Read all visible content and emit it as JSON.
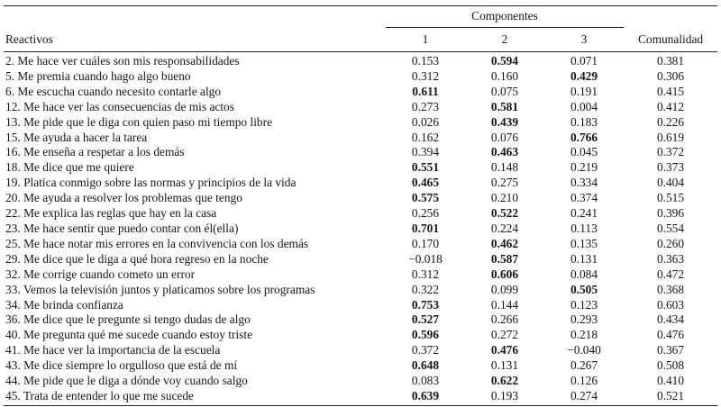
{
  "table": {
    "header": {
      "reactivos": "Reactivos",
      "componentes": "Componentes",
      "component_cols": [
        "1",
        "2",
        "3"
      ],
      "comunalidad": "Comunalidad"
    },
    "rows": [
      {
        "item": "2. Me hace ver cuáles son mis responsabilidades",
        "values": [
          "0.153",
          "0.594",
          "0.071"
        ],
        "bold": 1,
        "comunalidad": "0.381"
      },
      {
        "item": "5. Me premia cuando hago algo bueno",
        "values": [
          "0.312",
          "0.160",
          "0.429"
        ],
        "bold": 2,
        "comunalidad": "0.306"
      },
      {
        "item": "6. Me escucha cuando necesito contarle algo",
        "values": [
          "0.611",
          "0.075",
          "0.191"
        ],
        "bold": 0,
        "comunalidad": "0.415"
      },
      {
        "item": "12. Me hace ver las consecuencias de mis actos",
        "values": [
          "0.273",
          "0.581",
          "0.004"
        ],
        "bold": 1,
        "comunalidad": "0.412"
      },
      {
        "item": "13. Me pide que le diga con quien paso mi tiempo libre",
        "values": [
          "0.026",
          "0.439",
          "0.183"
        ],
        "bold": 1,
        "comunalidad": "0.226"
      },
      {
        "item": "15. Me ayuda a hacer la tarea",
        "values": [
          "0.162",
          "0.076",
          "0.766"
        ],
        "bold": 2,
        "comunalidad": "0.619"
      },
      {
        "item": "16. Me enseña a respetar a los demás",
        "values": [
          "0.394",
          "0.463",
          "0.045"
        ],
        "bold": 1,
        "comunalidad": "0.372"
      },
      {
        "item": "18. Me dice que me quiere",
        "values": [
          "0.551",
          "0.148",
          "0.219"
        ],
        "bold": 0,
        "comunalidad": "0.373"
      },
      {
        "item": "19. Platica conmigo sobre las normas y principios de la vida",
        "values": [
          "0.465",
          "0.275",
          "0.334"
        ],
        "bold": 0,
        "comunalidad": "0.404"
      },
      {
        "item": "20. Me ayuda a resolver los problemas que tengo",
        "values": [
          "0.575",
          "0.210",
          "0.374"
        ],
        "bold": 0,
        "comunalidad": "0.515"
      },
      {
        "item": "22. Me explica las reglas que hay en la casa",
        "values": [
          "0.256",
          "0.522",
          "0.241"
        ],
        "bold": 1,
        "comunalidad": "0.396"
      },
      {
        "item": "23. Me hace sentir que puedo contar con él(ella)",
        "values": [
          "0.701",
          "0.224",
          "0.113"
        ],
        "bold": 0,
        "comunalidad": "0.554"
      },
      {
        "item": "25. Me hace notar mis errores en la convivencia con los demás",
        "values": [
          "0.170",
          "0.462",
          "0.135"
        ],
        "bold": 1,
        "comunalidad": "0.260"
      },
      {
        "item": "29. Me dice que le diga a qué hora regreso en la noche",
        "values": [
          "−0.018",
          "0.587",
          "0.131"
        ],
        "bold": 1,
        "comunalidad": "0.363"
      },
      {
        "item": "32. Me corrige cuando cometo un error",
        "values": [
          "0.312",
          "0.606",
          "0.084"
        ],
        "bold": 1,
        "comunalidad": "0.472"
      },
      {
        "item": "33. Vemos la televisión juntos y platicamos sobre los programas",
        "values": [
          "0.322",
          "0.099",
          "0.505"
        ],
        "bold": 2,
        "comunalidad": "0.368"
      },
      {
        "item": "34. Me brinda confianza",
        "values": [
          "0.753",
          "0.144",
          "0.123"
        ],
        "bold": 0,
        "comunalidad": "0.603"
      },
      {
        "item": "36. Me dice que le pregunte si tengo dudas de algo",
        "values": [
          "0.527",
          "0.266",
          "0.293"
        ],
        "bold": 0,
        "comunalidad": "0.434"
      },
      {
        "item": "40. Me pregunta qué me sucede cuando estoy triste",
        "values": [
          "0.596",
          "0.272",
          "0.218"
        ],
        "bold": 0,
        "comunalidad": "0.476"
      },
      {
        "item": "41. Me hace ver la importancia de la escuela",
        "values": [
          "0.372",
          "0.476",
          "−0.040"
        ],
        "bold": 1,
        "comunalidad": "0.367"
      },
      {
        "item": "43. Me dice siempre lo orgulloso que está de mí",
        "values": [
          "0.648",
          "0.131",
          "0.267"
        ],
        "bold": 0,
        "comunalidad": "0.508"
      },
      {
        "item": "44. Me pide que le diga a dónde voy cuando salgo",
        "values": [
          "0.083",
          "0.622",
          "0.126"
        ],
        "bold": 1,
        "comunalidad": "0.410"
      },
      {
        "item": "45. Trata de entender lo que me sucede",
        "values": [
          "0.639",
          "0.193",
          "0.274"
        ],
        "bold": 0,
        "comunalidad": "0.521"
      }
    ]
  }
}
